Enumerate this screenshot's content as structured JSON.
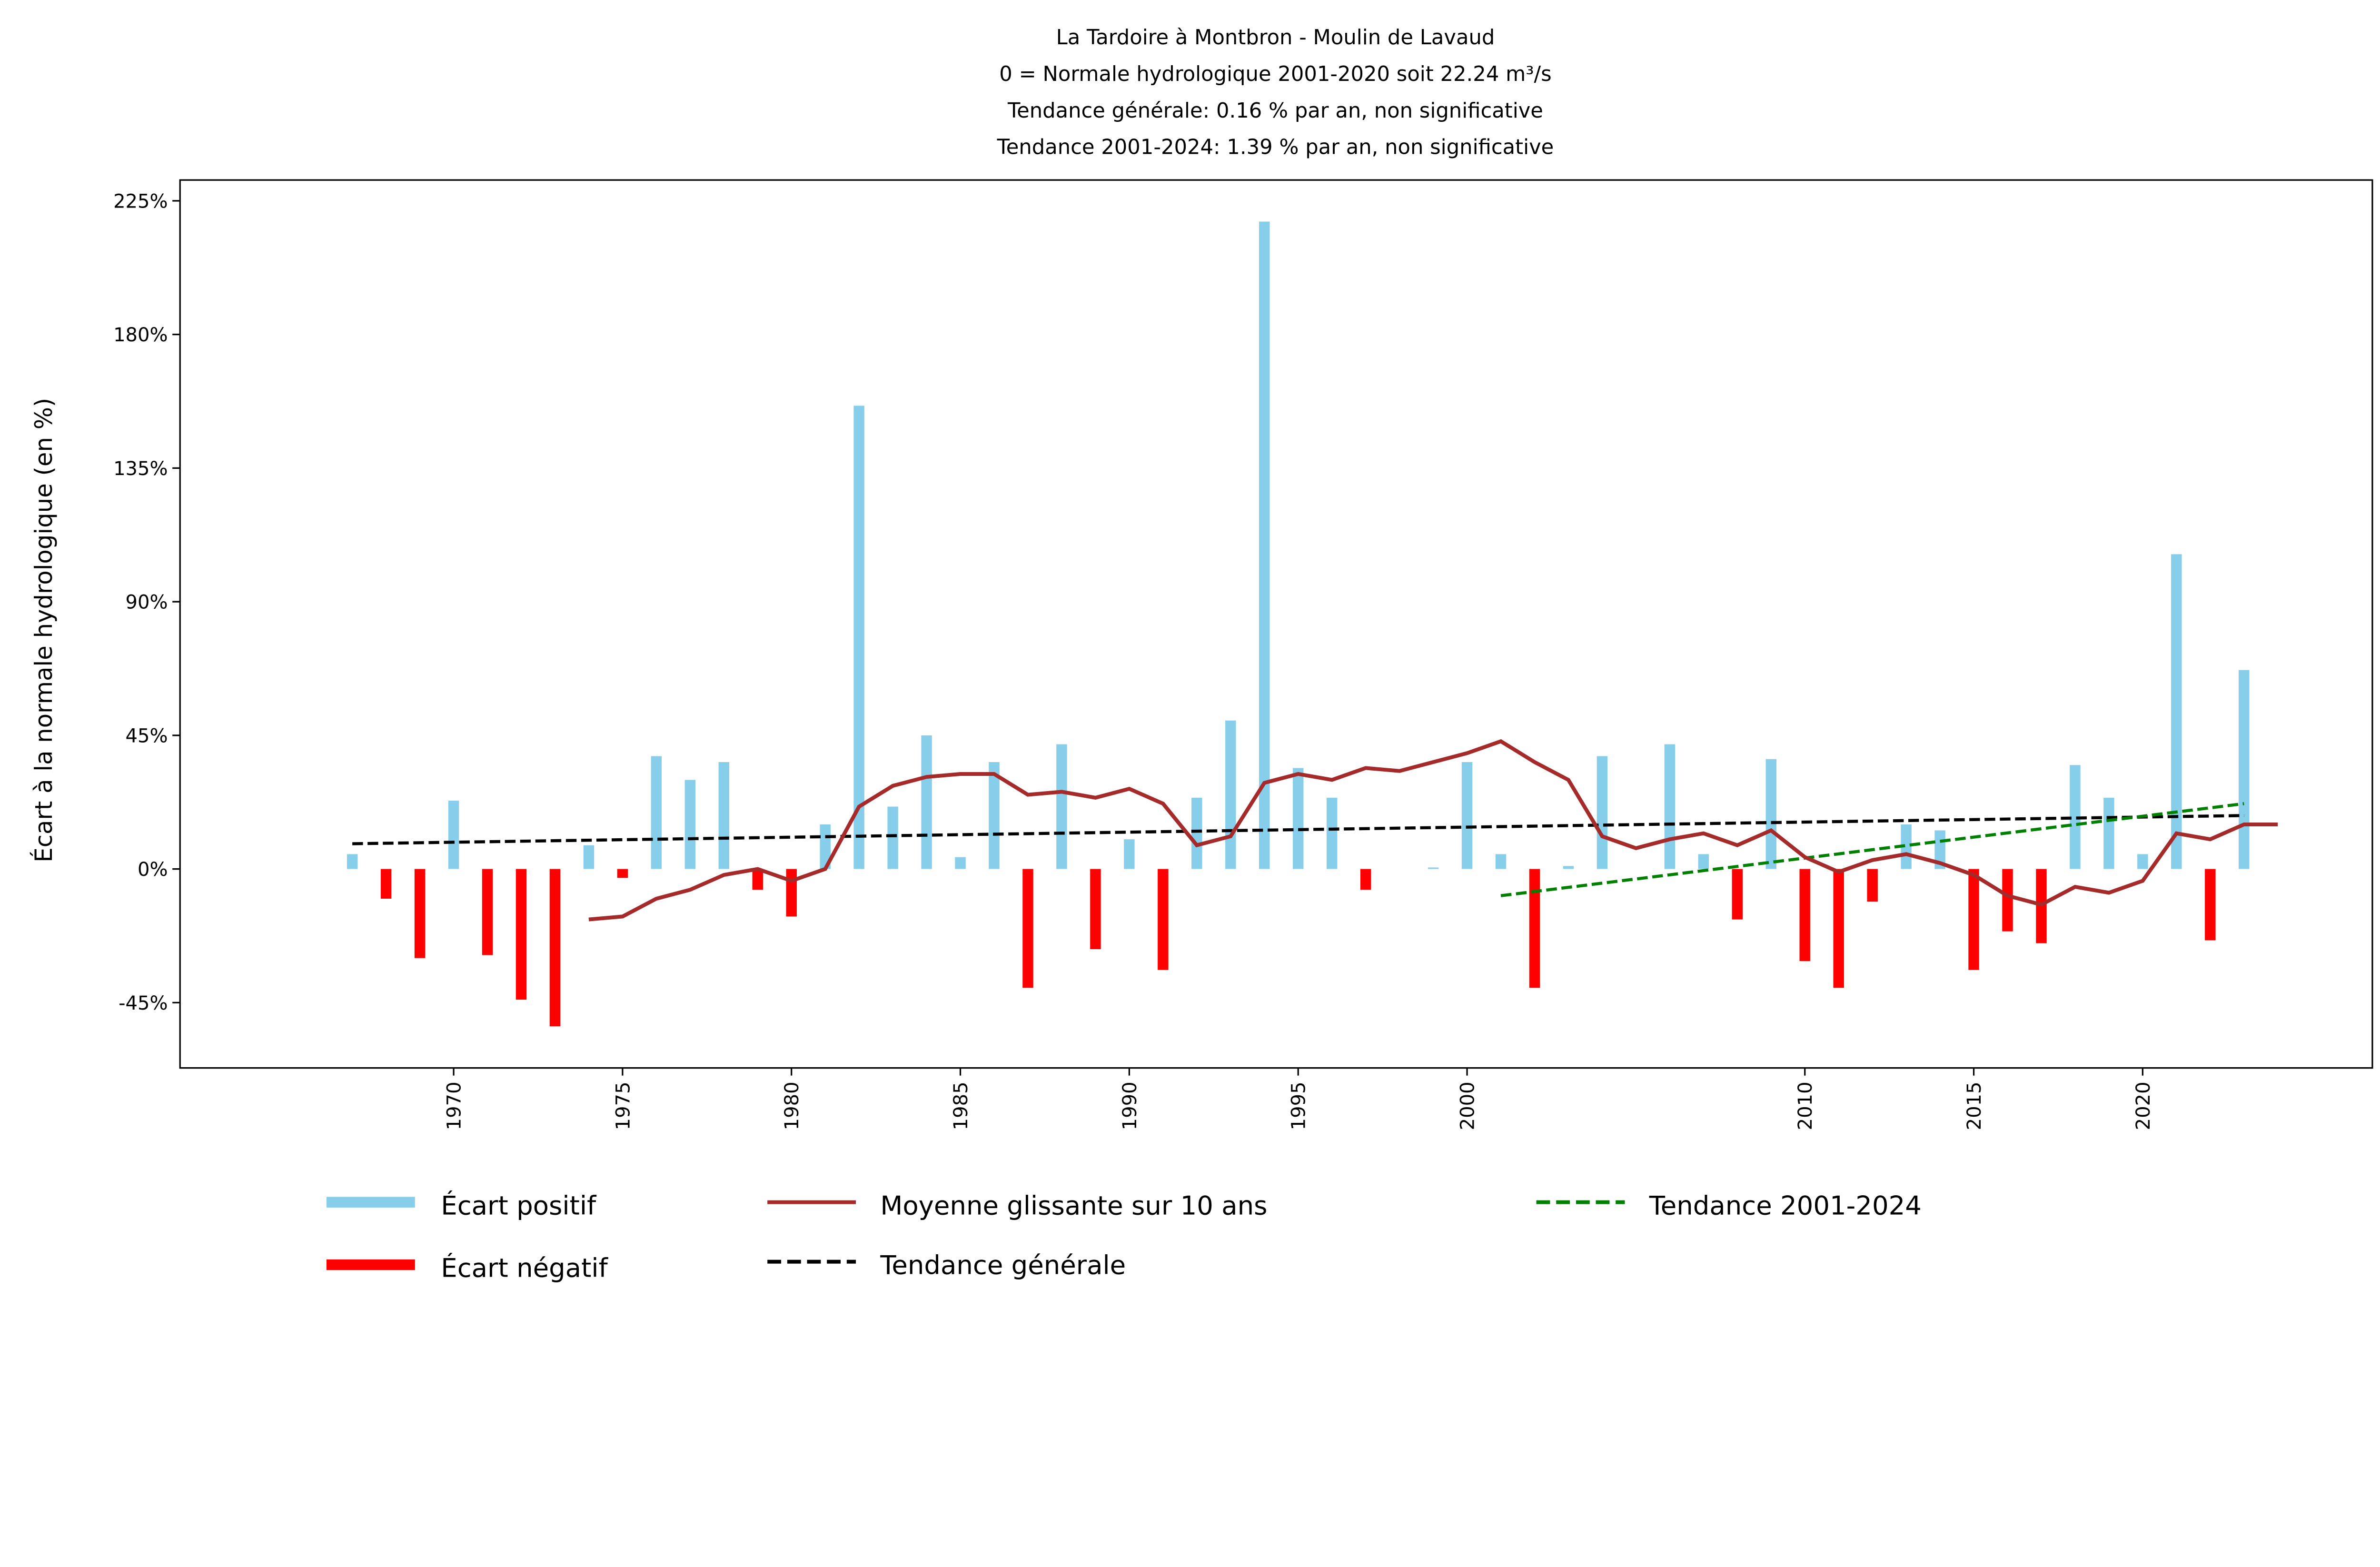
{
  "chart_data": {
    "type": "bar",
    "title": [
      "La Tardoire à Montbron - Moulin de Lavaud",
      "0 = Normale hydrologique 2001-2020 soit 22.24 m³/s",
      "Tendance générale: 0.16 % par an, non significative",
      "Tendance 2001-2024: 1.39 % par an, non significative"
    ],
    "ylabel": "Écart à la normale hydrologique (en %)",
    "xlabel": "",
    "ylim": [
      -67,
      232
    ],
    "xlim": [
      1961.9,
      2026.8
    ],
    "yticks": [
      -45,
      0,
      45,
      90,
      135,
      180,
      225
    ],
    "ytick_labels": [
      "-45%",
      "0%",
      "45%",
      "90%",
      "135%",
      "180%",
      "225%"
    ],
    "xticks": [
      1970,
      1975,
      1980,
      1985,
      1990,
      1995,
      2000,
      2010,
      2015,
      2020
    ],
    "grid": false,
    "legend_placement": "bottom",
    "colors": {
      "positive": "#87CEEB",
      "negative": "#FF0000",
      "moving_average": "#A52A2A",
      "trend_general": "#000000",
      "trend_recent": "#008000"
    },
    "legend": [
      "Écart positif",
      "Écart négatif",
      "Moyenne glissante sur 10 ans",
      "Tendance générale",
      "Tendance 2001-2024"
    ],
    "years": [
      1967,
      1968,
      1969,
      1970,
      1971,
      1972,
      1973,
      1974,
      1975,
      1976,
      1977,
      1978,
      1979,
      1980,
      1981,
      1982,
      1983,
      1984,
      1985,
      1986,
      1987,
      1988,
      1989,
      1990,
      1991,
      1992,
      1993,
      1994,
      1995,
      1996,
      1997,
      1998,
      1999,
      2000,
      2001,
      2002,
      2003,
      2004,
      2005,
      2006,
      2007,
      2008,
      2009,
      2010,
      2011,
      2012,
      2013,
      2014,
      2015,
      2016,
      2017,
      2018,
      2019,
      2020,
      2021,
      2022,
      2023
    ],
    "values": [
      5,
      -10,
      -30,
      23,
      -29,
      -44,
      -53,
      8,
      -3,
      38,
      30,
      36,
      -7,
      -16,
      15,
      156,
      21,
      45,
      4,
      36,
      -40,
      42,
      -27,
      10,
      -34,
      24,
      50,
      218,
      34,
      24,
      -7,
      0,
      0.5,
      36,
      5,
      -40,
      1,
      38,
      0,
      42,
      5,
      -17,
      37,
      -31,
      -40,
      -11,
      15,
      13,
      -34,
      -21,
      -25,
      35,
      24,
      5,
      106,
      -24,
      67
    ],
    "moving_average": {
      "years": [
        1974,
        1975,
        1976,
        1977,
        1978,
        1979,
        1980,
        1981,
        1982,
        1983,
        1984,
        1985,
        1986,
        1987,
        1988,
        1989,
        1990,
        1991,
        1992,
        1993,
        1994,
        1995,
        1996,
        1997,
        1998,
        1999,
        2000,
        2001,
        2002,
        2003,
        2004,
        2005,
        2006,
        2007,
        2008,
        2009,
        2010,
        2011,
        2012,
        2013,
        2014,
        2015,
        2016,
        2017,
        2018,
        2019,
        2020,
        2021,
        2022,
        2023,
        2024
      ],
      "values": [
        -17,
        -16,
        -10,
        -7,
        -2,
        0,
        -4,
        0,
        21,
        28,
        31,
        32,
        32,
        25,
        26,
        24,
        27,
        22,
        8,
        11,
        29,
        32,
        30,
        34,
        33,
        36,
        39,
        43,
        36,
        30,
        11,
        7,
        10,
        12,
        8,
        13,
        4,
        -1,
        3,
        5,
        2,
        -2,
        -9,
        -12,
        -6,
        -8,
        -4,
        12,
        10,
        15,
        15
      ]
    },
    "trend_general": {
      "x": [
        1967,
        2023
      ],
      "y": [
        8.5,
        18
      ]
    },
    "trend_recent": {
      "x": [
        2001,
        2023
      ],
      "y": [
        -9,
        22
      ]
    }
  }
}
